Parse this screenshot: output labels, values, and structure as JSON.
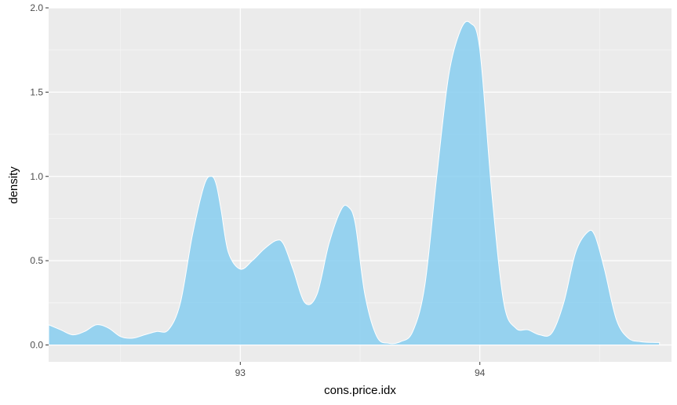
{
  "chart_data": {
    "type": "area",
    "title": "",
    "xlabel": "cons.price.idx",
    "ylabel": "density",
    "xlim": [
      92.2,
      94.8
    ],
    "ylim": [
      -0.1,
      2.0
    ],
    "x_ticks": [
      93,
      94
    ],
    "x_tick_labels": [
      "93",
      "94"
    ],
    "y_ticks": [
      0.0,
      0.5,
      1.0,
      1.5,
      2.0
    ],
    "y_tick_labels": [
      "0.0",
      "0.5",
      "1.0",
      "1.5",
      "2.0"
    ],
    "grid": true,
    "legend": "none",
    "colors": {
      "panel_background": "#ebebeb",
      "grid_major": "#ffffff",
      "grid_minor": "#f5f5f5",
      "fill": "#87CEF0",
      "outline": "#ffffff"
    },
    "series": [
      {
        "x": [
          92.2,
          92.25,
          92.3,
          92.35,
          92.4,
          92.45,
          92.5,
          92.55,
          92.6,
          92.65,
          92.7,
          92.75,
          92.8,
          92.85,
          92.88,
          92.9,
          92.92,
          92.95,
          93.0,
          93.05,
          93.1,
          93.15,
          93.18,
          93.22,
          93.27,
          93.32,
          93.37,
          93.42,
          93.45,
          93.48,
          93.52,
          93.57,
          93.62,
          93.67,
          93.72,
          93.77,
          93.82,
          93.87,
          93.92,
          93.96,
          94.0,
          94.05,
          94.1,
          94.15,
          94.2,
          94.25,
          94.3,
          94.35,
          94.4,
          94.45,
          94.48,
          94.52,
          94.57,
          94.62,
          94.67,
          94.72,
          94.75
        ],
        "y": [
          0.12,
          0.09,
          0.06,
          0.08,
          0.12,
          0.1,
          0.05,
          0.04,
          0.06,
          0.08,
          0.09,
          0.25,
          0.65,
          0.95,
          1.0,
          0.95,
          0.8,
          0.55,
          0.45,
          0.5,
          0.57,
          0.62,
          0.6,
          0.45,
          0.25,
          0.3,
          0.6,
          0.8,
          0.82,
          0.72,
          0.3,
          0.05,
          0.01,
          0.02,
          0.08,
          0.35,
          1.0,
          1.6,
          1.87,
          1.91,
          1.75,
          0.9,
          0.25,
          0.1,
          0.09,
          0.06,
          0.07,
          0.25,
          0.55,
          0.67,
          0.65,
          0.45,
          0.15,
          0.04,
          0.02,
          0.015,
          0.015
        ]
      }
    ]
  }
}
